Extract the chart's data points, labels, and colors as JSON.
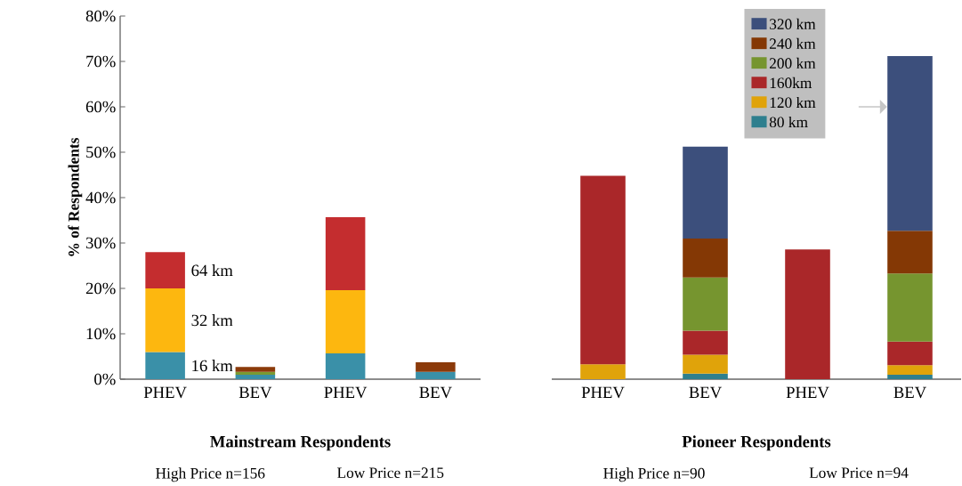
{
  "chart_data": [
    {
      "type": "bar",
      "stacked": true,
      "ylabel": "% of Respondents",
      "xlabel": "Mainstream Respondents",
      "categories": [
        "PHEV",
        "BEV",
        "PHEV",
        "BEV"
      ],
      "ylim": [
        0,
        80
      ],
      "yticks": [
        {
          "value": 0,
          "label": "0%"
        },
        {
          "value": 10,
          "label": "10%"
        },
        {
          "value": 20,
          "label": "20%"
        },
        {
          "value": 30,
          "label": "30%"
        },
        {
          "value": 40,
          "label": "40%"
        },
        {
          "value": 50,
          "label": "50%"
        },
        {
          "value": 60,
          "label": "60%"
        },
        {
          "value": 70,
          "label": "70%"
        },
        {
          "value": 80,
          "label": "80%"
        }
      ],
      "series": [
        {
          "name": "16 km",
          "color": "#3a90a8",
          "values": [
            6.0,
            1.0,
            5.7,
            1.6
          ]
        },
        {
          "name": "32 km",
          "color": "#fdb70f",
          "values": [
            14.0,
            null,
            13.9,
            null
          ]
        },
        {
          "name": "64 km",
          "color": "#c42d2f",
          "values": [
            8.0,
            null,
            16.1,
            null
          ]
        },
        {
          "color": "#7a9a32",
          "values": [
            null,
            0.6,
            null,
            null
          ]
        },
        {
          "color": "#8b3a0a",
          "values": [
            null,
            1.1,
            null,
            2.1
          ]
        }
      ],
      "annotations": [
        "High Price n=156",
        "Low Price n=215"
      ],
      "legend": false
    },
    {
      "type": "bar",
      "stacked": true,
      "xlabel": "Pioneer Respondents",
      "categories": [
        "PHEV",
        "BEV",
        "PHEV",
        "BEV"
      ],
      "ylim": [
        0,
        80
      ],
      "tick_labels": "x",
      "series": [
        {
          "name": "80 km",
          "color": "#2e7f8e",
          "values": [
            null,
            1.2,
            null,
            1.0
          ]
        },
        {
          "name": "120 km",
          "color": "#e0a30a",
          "values": [
            3.3,
            4.2,
            null,
            2.1
          ]
        },
        {
          "name": "160km",
          "color": "#aa2729",
          "values": [
            41.5,
            5.3,
            28.6,
            5.2
          ]
        },
        {
          "name": "200 km",
          "color": "#76952f",
          "values": [
            null,
            11.7,
            null,
            15.0
          ]
        },
        {
          "name": "240 km",
          "color": "#843805",
          "values": [
            null,
            8.6,
            null,
            9.4
          ]
        },
        {
          "name": "320 km",
          "color": "#3c4f7c",
          "values": [
            null,
            20.2,
            null,
            38.5
          ]
        }
      ],
      "annotations": [
        "High Price n=90",
        "Low Price n=94"
      ],
      "legend": "top right"
    }
  ]
}
